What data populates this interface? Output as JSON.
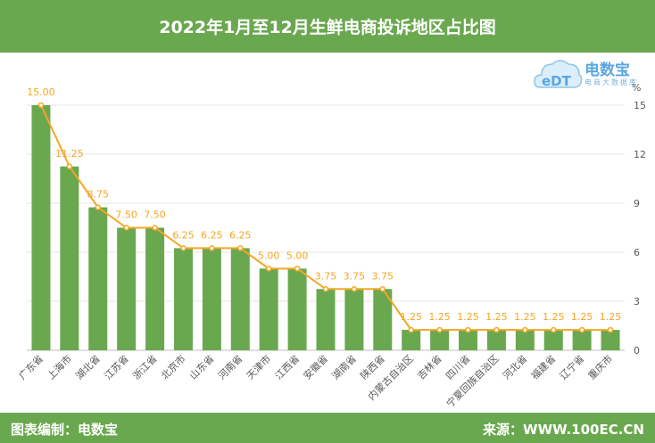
{
  "header": {
    "title": "2022年1月至12月生鲜电商投诉地区占比图"
  },
  "footer": {
    "editor": "图表编制：电数宝",
    "source": "来源：WWW.100EC.CN"
  },
  "logo": {
    "name": "电数宝",
    "sub": "电商大数据库",
    "mark": "eDT"
  },
  "colors": {
    "bar": "#6aa84f",
    "line": "#f5a623",
    "label": "#f5a623",
    "grid": "#e6e6e6",
    "axis_text": "#595959"
  },
  "chart_data": {
    "type": "bar",
    "title": "2022年1月至12月生鲜电商投诉地区占比图",
    "ylabel": "%",
    "ylim": [
      0,
      15
    ],
    "yticks": [
      0,
      3,
      6,
      9,
      12,
      15
    ],
    "grid": true,
    "categories": [
      "广东省",
      "上海市",
      "湖北省",
      "江苏省",
      "浙江省",
      "北京市",
      "山东省",
      "河南省",
      "天津市",
      "江西省",
      "安徽省",
      "湖南省",
      "陕西省",
      "内蒙古自治区",
      "吉林省",
      "四川省",
      "宁夏回族自治区",
      "河北省",
      "福建省",
      "辽宁省",
      "重庆市"
    ],
    "values": [
      15.0,
      11.25,
      8.75,
      7.5,
      7.5,
      6.25,
      6.25,
      6.25,
      5.0,
      5.0,
      3.75,
      3.75,
      3.75,
      1.25,
      1.25,
      1.25,
      1.25,
      1.25,
      1.25,
      1.25,
      1.25
    ],
    "data_labels": [
      "15.00",
      "11.25",
      "8.75",
      "7.50",
      "7.50",
      "6.25",
      "6.25",
      "6.25",
      "5.00",
      "5.00",
      "3.75",
      "3.75",
      "3.75",
      "1.25",
      "1.25",
      "1.25",
      "1.25",
      "1.25",
      "1.25",
      "1.25",
      "1.25"
    ]
  }
}
